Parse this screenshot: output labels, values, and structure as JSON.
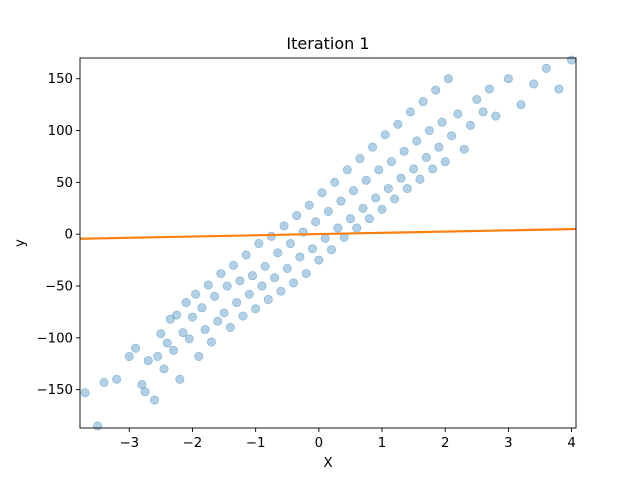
{
  "chart_data": {
    "type": "scatter",
    "title": "Iteration 1",
    "xlabel": "X",
    "ylabel": "y",
    "xlim": [
      -3.78,
      4.07
    ],
    "ylim": [
      -187,
      170
    ],
    "grid": false,
    "x_ticks": [
      -3,
      -2,
      -1,
      0,
      1,
      2,
      3,
      4
    ],
    "x_tick_labels": [
      "−3",
      "−2",
      "−1",
      "0",
      "1",
      "2",
      "3",
      "4"
    ],
    "y_ticks": [
      -150,
      -100,
      -50,
      0,
      50,
      100,
      150
    ],
    "y_tick_labels": [
      "−150",
      "−100",
      "−50",
      "0",
      "50",
      "100",
      "150"
    ],
    "scatter": {
      "color": "#1f77b4",
      "alpha": 0.35,
      "trend": {
        "slope": 50,
        "intercept": 0
      },
      "x": [
        -3.7,
        -3.5,
        -3.4,
        -3.2,
        -3.0,
        -2.9,
        -2.8,
        -2.75,
        -2.7,
        -2.6,
        -2.55,
        -2.5,
        -2.45,
        -2.4,
        -2.35,
        -2.3,
        -2.25,
        -2.2,
        -2.15,
        -2.1,
        -2.05,
        -2.0,
        -1.95,
        -1.9,
        -1.85,
        -1.8,
        -1.75,
        -1.7,
        -1.65,
        -1.6,
        -1.55,
        -1.5,
        -1.45,
        -1.4,
        -1.35,
        -1.3,
        -1.25,
        -1.2,
        -1.15,
        -1.1,
        -1.05,
        -1.0,
        -0.95,
        -0.9,
        -0.85,
        -0.8,
        -0.75,
        -0.7,
        -0.65,
        -0.6,
        -0.55,
        -0.5,
        -0.45,
        -0.4,
        -0.35,
        -0.3,
        -0.25,
        -0.2,
        -0.15,
        -0.1,
        -0.05,
        0.0,
        0.05,
        0.1,
        0.15,
        0.2,
        0.25,
        0.3,
        0.35,
        0.4,
        0.45,
        0.5,
        0.55,
        0.6,
        0.65,
        0.7,
        0.75,
        0.8,
        0.85,
        0.9,
        0.95,
        1.0,
        1.05,
        1.1,
        1.15,
        1.2,
        1.25,
        1.3,
        1.35,
        1.4,
        1.45,
        1.5,
        1.55,
        1.6,
        1.65,
        1.7,
        1.75,
        1.8,
        1.85,
        1.9,
        1.95,
        2.0,
        2.05,
        2.1,
        2.2,
        2.3,
        2.4,
        2.5,
        2.6,
        2.7,
        2.8,
        3.0,
        3.2,
        3.4,
        3.6,
        3.8,
        4.0
      ],
      "y": [
        -153,
        -185,
        -143,
        -140,
        -118,
        -110,
        -145,
        -152,
        -122,
        -160,
        -118,
        -96,
        -130,
        -105,
        -82,
        -112,
        -78,
        -140,
        -95,
        -66,
        -101,
        -80,
        -58,
        -118,
        -71,
        -92,
        -49,
        -104,
        -60,
        -84,
        -38,
        -76,
        -50,
        -90,
        -30,
        -66,
        -45,
        -79,
        -20,
        -58,
        -40,
        -72,
        -9,
        -50,
        -31,
        -63,
        -2,
        -42,
        -18,
        -55,
        8,
        -33,
        -9,
        -47,
        18,
        -22,
        2,
        -38,
        28,
        -14,
        12,
        -25,
        40,
        -4,
        22,
        -15,
        50,
        6,
        32,
        -3,
        62,
        15,
        42,
        6,
        73,
        25,
        52,
        15,
        84,
        35,
        62,
        24,
        96,
        44,
        70,
        34,
        106,
        54,
        80,
        44,
        118,
        63,
        90,
        53,
        128,
        74,
        100,
        63,
        139,
        84,
        108,
        70,
        150,
        95,
        116,
        82,
        105,
        130,
        118,
        140,
        114,
        150,
        125,
        145,
        160,
        140,
        168
      ]
    },
    "series": [
      {
        "type": "line",
        "color": "#ff7f0e",
        "x": [
          -3.78,
          4.07
        ],
        "y": [
          -4.4,
          5.0
        ]
      }
    ]
  }
}
